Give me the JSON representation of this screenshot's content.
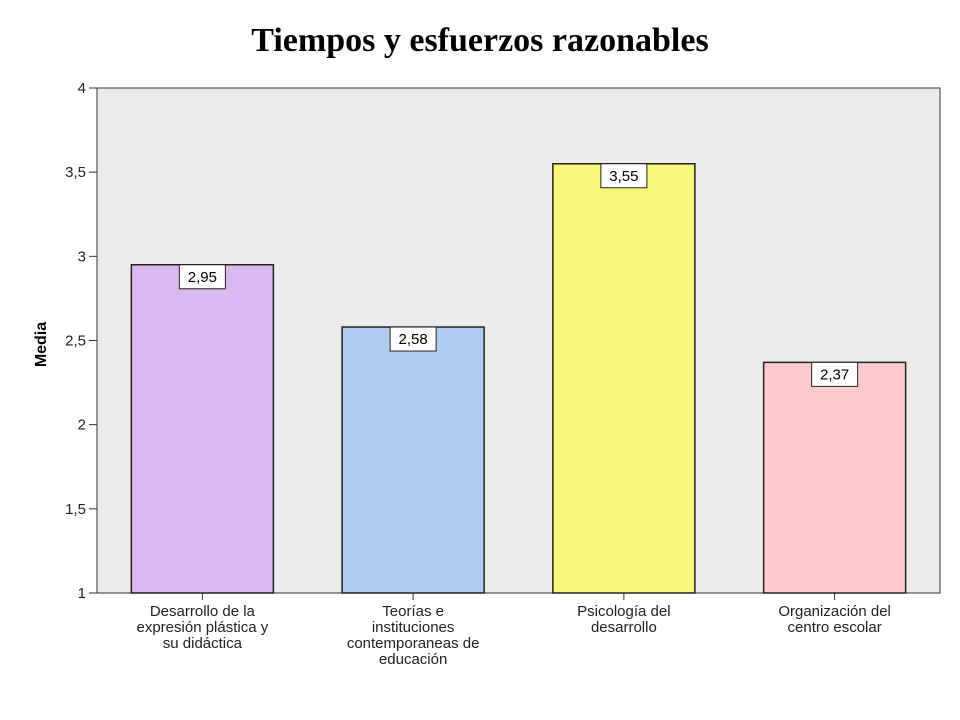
{
  "chart_data": {
    "type": "bar",
    "title": "Tiempos y esfuerzos razonables",
    "xlabel": "",
    "ylabel": "Media",
    "ylim": [
      1,
      4
    ],
    "yticks": [
      "1",
      "1,5",
      "2",
      "2,5",
      "3",
      "3,5",
      "4"
    ],
    "ytick_values": [
      1,
      1.5,
      2,
      2.5,
      3,
      3.5,
      4
    ],
    "categories": [
      [
        "Desarrollo de la",
        "expresión plástica y",
        "su didáctica"
      ],
      [
        "Teorías e",
        "instituciones",
        "contemporaneas de",
        "educación"
      ],
      [
        "Psicología del",
        "desarrollo"
      ],
      [
        "Organización del",
        "centro escolar"
      ]
    ],
    "values": [
      2.95,
      2.58,
      3.55,
      2.37
    ],
    "value_labels": [
      "2,95",
      "2,58",
      "3,55",
      "2,37"
    ],
    "bar_colors": [
      "#dcb8f0",
      "#aecdee",
      "#f8f67a",
      "#fccaca"
    ],
    "plot_background": "#ebebeb",
    "grid": false
  }
}
